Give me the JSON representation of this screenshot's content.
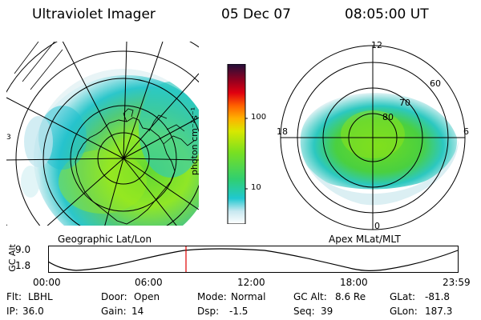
{
  "header": {
    "instrument": "Ultraviolet Imager",
    "date": "05 Dec 07",
    "time": "08:05:00 UT"
  },
  "left_panel": {
    "caption": "Geographic Lat/Lon",
    "edge_marks": [
      "3"
    ]
  },
  "right_panel": {
    "caption": "Apex MLat/MLT",
    "mlt_labels": {
      "top": "12",
      "left": "18",
      "right": "6",
      "bottom": "0"
    },
    "lat_labels": [
      "80",
      "70",
      "60"
    ]
  },
  "colorbar": {
    "unit_label": "photon cm⁻²s⁻¹",
    "ticks": [
      "100",
      "10"
    ],
    "scale": "log"
  },
  "altitude_strip": {
    "axis_label": "GC Alt",
    "y_ticks": [
      "9.0",
      "1.8"
    ],
    "x_ticks": [
      "00:00",
      "06:00",
      "12:00",
      "18:00",
      "23:59"
    ],
    "current_time_fraction": 0.336
  },
  "info": {
    "row1": [
      {
        "label": "Flt:",
        "value": "LBHL"
      },
      {
        "label": "Door:",
        "value": "Open"
      },
      {
        "label": "Mode:",
        "value": "Normal"
      },
      {
        "label": "GC Alt:",
        "value": "8.6 Re"
      },
      {
        "label": "GLat:",
        "value": "-81.8"
      }
    ],
    "row2": [
      {
        "label": "IP:",
        "value": "36.0"
      },
      {
        "label": "Gain:",
        "value": "14"
      },
      {
        "label": "Dsp:",
        "value": "-1.5"
      },
      {
        "label": "Seq:",
        "value": "39"
      },
      {
        "label": "GLon:",
        "value": "187.3"
      }
    ]
  },
  "colors": {
    "grid": "#000000",
    "marker": "#e00000",
    "background": "#ffffff"
  }
}
